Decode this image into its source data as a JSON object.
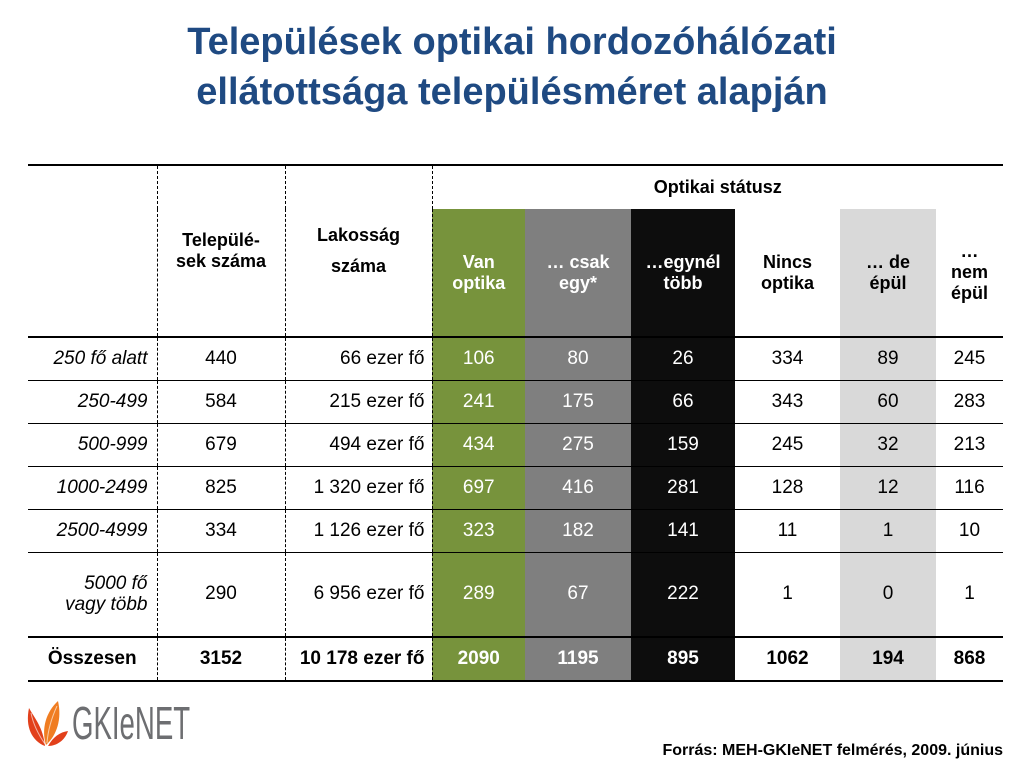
{
  "title": {
    "lines": [
      "Települések optikai hordozóhálózati",
      "ellátottsága településméret alapján"
    ]
  },
  "table": {
    "group_header": "Optikai státusz",
    "headers": {
      "settlements": [
        "Települé-",
        "sek száma"
      ],
      "population": [
        "Lakosság",
        "száma"
      ],
      "has_optics": [
        "Van",
        "optika"
      ],
      "only_one": [
        "… csak",
        "egy*"
      ],
      "more_than_one": [
        "…egynél",
        "több"
      ],
      "no_optics": [
        "Nincs",
        "optika"
      ],
      "under_construction": [
        "… de",
        "épül"
      ],
      "not_under_construction": [
        "…",
        "nem",
        "épül"
      ]
    },
    "rows": [
      {
        "label_lines": [
          "250 fő alatt"
        ],
        "values": [
          "440",
          "66 ezer fő",
          "106",
          "80",
          "26",
          "334",
          "89",
          "245"
        ]
      },
      {
        "label_lines": [
          "250-499"
        ],
        "values": [
          "584",
          "215 ezer fő",
          "241",
          "175",
          "66",
          "343",
          "60",
          "283"
        ]
      },
      {
        "label_lines": [
          "500-999"
        ],
        "values": [
          "679",
          "494 ezer fő",
          "434",
          "275",
          "159",
          "245",
          "32",
          "213"
        ]
      },
      {
        "label_lines": [
          "1000-2499"
        ],
        "values": [
          "825",
          "1 320 ezer fő",
          "697",
          "416",
          "281",
          "128",
          "12",
          "116"
        ]
      },
      {
        "label_lines": [
          "2500-4999"
        ],
        "values": [
          "334",
          "1 126 ezer fő",
          "323",
          "182",
          "141",
          "11",
          "1",
          "10"
        ]
      },
      {
        "label_lines": [
          "5000 fő",
          "vagy több"
        ],
        "values": [
          "290",
          "6 956 ezer fő",
          "289",
          "67",
          "222",
          "1",
          "0",
          "1"
        ]
      }
    ],
    "total": {
      "label": "Összesen",
      "values": [
        "3152",
        "10 178 ezer fő",
        "2090",
        "1195",
        "895",
        "1062",
        "194",
        "868"
      ]
    }
  },
  "logo": {
    "text": "GKIeNET",
    "icon": "leaf-flame-icon"
  },
  "source": "Forrás: MEH-GKIeNET felmérés, 2009. június",
  "colors": {
    "title": "#1f4a82",
    "has_optics": "#77933c",
    "only_one": "#7f7f7f",
    "more_than_one": "#0d0d0d",
    "under_construction": "#d9d9d9",
    "logo_text": "#6d6e71",
    "logo_orange": "#f07d22",
    "logo_red": "#e2401b"
  }
}
